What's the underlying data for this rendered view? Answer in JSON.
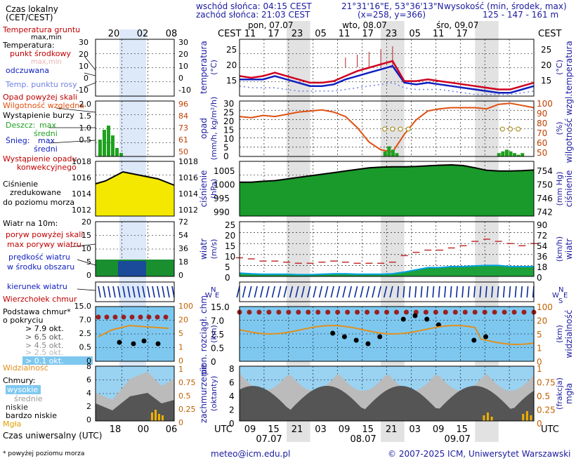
{
  "header": {
    "sunrise": "wschód słońca: 04:15 CEST",
    "sunset": "zachód słońca: 21:03 CEST",
    "coords": "21°31'16\"E, 53°36'13\"N",
    "grid": "(x=258, y=366)",
    "elev_title": "wysokość (min, środek, max)",
    "elev_values": "125 - 147 - 161 m",
    "tz_left": "CEST",
    "tz_right": "CEST",
    "utc_left": "UTC",
    "utc_right": "UTC"
  },
  "days": [
    {
      "label": "pon, 07.07"
    },
    {
      "label": "wto, 08.07"
    },
    {
      "label": "śro, 09.07"
    }
  ],
  "top_hours": [
    "11",
    "17",
    "23",
    "05",
    "11",
    "17",
    "23",
    "05",
    "11",
    "17"
  ],
  "bottom_hours": [
    "09",
    "15",
    "21",
    "03",
    "09",
    "15",
    "21",
    "03",
    "09",
    "15"
  ],
  "bottom_dates": [
    "07.07",
    "08.07",
    "09.07"
  ],
  "legend": {
    "title1": "Czas lokalny",
    "title2": "(CET/CEST)",
    "top_hours": [
      "20",
      "02",
      "08"
    ],
    "bottom_hours": [
      "18",
      "00",
      "06"
    ],
    "utc_label": "Czas uniwersalny (UTC)",
    "footnote": "* powyżej poziomu morza",
    "temp": {
      "ground": "Temperatura gruntu",
      "ground_sub": "max,min",
      "temp_title": "Temperatura:",
      "mid": "punkt środkowy",
      "maxmin": "max,min",
      "cold": "odczuwana",
      "dew": "Temp. punktu rosy",
      "ticks_l": [
        "30",
        "20",
        "10",
        "0",
        "-10"
      ],
      "ticks_r": [
        "30",
        "20",
        "10",
        "0",
        "-10"
      ]
    },
    "precip": {
      "above": "Opad powyżej skali",
      "humidity": "Wilgotność względna",
      "storm": "Wystąpienie burzy",
      "rain": "Deszcz:",
      "rain_max": "max",
      "rain_mid": "średni",
      "snow": "Śnieg:",
      "snow_max": "max",
      "snow_mid": "średni",
      "conv1": "Wystąpienie opadu",
      "conv2": "konwekcyjnego",
      "ticks_l": [
        "2.0",
        "1.5",
        "1.0",
        "0.5"
      ],
      "ticks_r": [
        "96",
        "84",
        "73",
        "61",
        "50"
      ]
    },
    "pressure": {
      "line1": "Ciśnienie",
      "line2": "zredukowane",
      "line3": "do poziomu morza",
      "ticks_l": [
        "1018",
        "1016",
        "1014",
        "1012"
      ],
      "ticks_r": [
        "1018",
        "1016",
        "1014",
        "1012"
      ]
    },
    "wind": {
      "title": "Wiatr na 10m:",
      "gust_above": "poryw powyżej skali",
      "gust_max": "max porywy wiatru",
      "speed1": "prędkość wiatru",
      "speed2": "w środku obszaru",
      "ticks_l": [
        "20",
        "15",
        "10",
        "5",
        "0"
      ],
      "ticks_r": [
        "72",
        "54",
        "36",
        "18",
        "0"
      ]
    },
    "dir": {
      "label": "kierunek wiatru"
    },
    "clouds": {
      "tops": "Wierzchołek chmur",
      "base1": "Podstawa chmur*",
      "base2": "o pokryciu",
      "c79": "> 7.9 okt.",
      "c65": "> 6.5 okt.",
      "c45": "> 4.5 okt.",
      "c25": "> 2.5 okt.",
      "c01": "> 0.1 okt.",
      "vis": "Widzialność",
      "ticks_l": [
        "15.0",
        "7.0",
        "2.5",
        "0.5",
        "0"
      ],
      "ticks_r": [
        "100",
        "20",
        "5",
        "1",
        "0"
      ]
    },
    "cover": {
      "title": "Chmury:",
      "high": "wysokie",
      "mid": "średnie",
      "low": "niskie",
      "vlow": "bardzo niskie",
      "fog": "Mgła",
      "ticks_l": [
        "8",
        "6",
        "4",
        "2",
        "0"
      ],
      "ticks_r": [
        "1",
        "0.75",
        "0.5",
        "0.25",
        "0"
      ]
    }
  },
  "panels": {
    "temp": {
      "ylabel_l": "temperatura",
      "unit_l": "(°C)",
      "ylabel_r": "temperatura",
      "unit_r": "(°C)",
      "ticks": [
        "25",
        "20",
        "15"
      ]
    },
    "precip": {
      "ylabel_l": "opad",
      "unit_l": "(mm/h, kg/m²/h)",
      "ylabel_r": "wilgotność wzgl.",
      "unit_r": "(%)",
      "ticks_l": [
        "30",
        "25",
        "20",
        "15",
        "10",
        "5",
        "0"
      ],
      "ticks_r": [
        "100",
        "90",
        "80",
        "70",
        "60",
        "50"
      ]
    },
    "pressure": {
      "ylabel_l": "ciśnienie",
      "unit_l": "(hPa)",
      "ylabel_r": "ciśnienie",
      "unit_r": "(mm Hg)",
      "ticks_l": [
        "1005",
        "1000",
        "995",
        "990"
      ],
      "ticks_r": [
        "754",
        "750",
        "746",
        "742"
      ]
    },
    "wind": {
      "ylabel_l": "wiatr",
      "unit_l": "(m/s)",
      "ylabel_r": "wiatr",
      "unit_r": "(km/h)",
      "ticks_l": [
        "25",
        "20",
        "15",
        "10",
        "5",
        "0"
      ],
      "ticks_r": [
        "90",
        "72",
        "54",
        "36",
        "18",
        "0"
      ]
    },
    "dir": {
      "rose": "N W E S"
    },
    "cloudbase": {
      "ylabel_l": "pion. rozciągł. chm.",
      "unit_l": "(km)",
      "ylabel_r": "widzialność",
      "unit_r": "(km)",
      "ticks_l": [
        "15.0",
        "7.0",
        "2.5",
        "0.5",
        "0"
      ],
      "ticks_r": [
        "100",
        "20",
        "5",
        "1",
        "0"
      ]
    },
    "cover": {
      "ylabel_l": "zachmurzenie",
      "unit_l": "(oktanty)",
      "ylabel_r": "mgła",
      "unit_r": "(frakcja)",
      "ticks_l": [
        "8",
        "6",
        "4",
        "2",
        "0"
      ],
      "ticks_r": [
        "1",
        "0.75",
        "0.5",
        "0.25",
        "0"
      ]
    }
  },
  "footer": {
    "email": "meteo@icm.edu.pl",
    "copyright": "© 2007-2025 ICM, Uniwersytet Warszawski"
  },
  "colors": {
    "temp_line": "#d00020",
    "apparent": "#1020c0",
    "dew": "#7080e0",
    "humidity": "#e05010",
    "rain": "#20a020",
    "pressure_fill": "#1a9a2a",
    "wind": "#0a2a9a",
    "gust": "#c03030",
    "night_band": "#e2e2e2",
    "cloud_bg": "#7ec8f0"
  },
  "chart_data": [
    {
      "type": "line",
      "title": "temperatura",
      "xlabel": "",
      "ylabel": "(°C)",
      "ylim": [
        12,
        29
      ],
      "x": [
        0,
        3,
        6,
        9,
        12,
        15,
        18,
        21,
        24,
        27,
        30,
        33,
        36,
        39,
        42,
        45,
        48,
        51,
        54,
        57,
        60,
        63,
        66,
        69,
        72,
        75
      ],
      "series": [
        {
          "name": "punkt środkowy",
          "values": [
            18,
            17.5,
            18,
            19,
            18,
            17,
            16,
            16,
            16.5,
            18,
            19.5,
            20.5,
            21.5,
            22.5,
            16.5,
            16.5,
            17,
            16.5,
            16,
            15.5,
            15,
            14.5,
            14,
            14,
            15,
            16
          ]
        },
        {
          "name": "odczuwana",
          "values": [
            17,
            17,
            17,
            18,
            17,
            16,
            15,
            15,
            15.5,
            17,
            18,
            19,
            20,
            21,
            16,
            15.5,
            16,
            15.5,
            15,
            14.5,
            14,
            13.5,
            13,
            13,
            14,
            15
          ]
        },
        {
          "name": "Temp. punktu rosy",
          "values": [
            15,
            14.5,
            14.5,
            14.5,
            14,
            13.5,
            13.5,
            13.5,
            13.5,
            14,
            14.5,
            15,
            15.5,
            16,
            14.5,
            14,
            14,
            14,
            13.5,
            13,
            12.5,
            12.5,
            12.5,
            12.5,
            13,
            13.5
          ]
        }
      ]
    },
    {
      "type": "line",
      "title": "opad / wilgotność wzgl.",
      "xlabel": "",
      "ylabel": "(mm/h)",
      "ylim": [
        0,
        30
      ],
      "x": [
        0,
        3,
        6,
        9,
        12,
        15,
        18,
        21,
        24,
        27,
        30,
        33,
        36,
        39,
        42,
        45,
        48,
        51,
        54,
        57,
        60,
        63,
        66,
        69,
        72,
        75
      ],
      "series": [
        {
          "name": "Wilgotność względna",
          "values": [
            86,
            85,
            87,
            86,
            88,
            90,
            91,
            92,
            90,
            86,
            76,
            63,
            56,
            54,
            70,
            83,
            91,
            93,
            94,
            94,
            94,
            93,
            97,
            98,
            96,
            94
          ]
        }
      ]
    },
    {
      "type": "area",
      "title": "ciśnienie",
      "xlabel": "",
      "ylabel": "(hPa)",
      "ylim": [
        990,
        1007
      ],
      "x": [
        0,
        3,
        6,
        9,
        12,
        15,
        18,
        21,
        24,
        27,
        30,
        33,
        36,
        39,
        42,
        45,
        48,
        51,
        54,
        57,
        60,
        63,
        66,
        69,
        72,
        75
      ],
      "series": [
        {
          "name": "Ciśnienie",
          "values": [
            1000.5,
            1000.5,
            1000.8,
            1001,
            1001.5,
            1002,
            1002.5,
            1003,
            1003.5,
            1004,
            1004.5,
            1005,
            1005.2,
            1005.3,
            1005.3,
            1005.4,
            1005.6,
            1005.8,
            1005.9,
            1005.7,
            1005,
            1004.2,
            1004,
            1004,
            1004.1,
            1004.3
          ]
        }
      ]
    },
    {
      "type": "line",
      "title": "wiatr",
      "xlabel": "",
      "ylabel": "(m/s)",
      "ylim": [
        0,
        25
      ],
      "x": [
        0,
        3,
        6,
        9,
        12,
        15,
        18,
        21,
        24,
        27,
        30,
        33,
        36,
        39,
        42,
        45,
        48,
        51,
        54,
        57,
        60,
        63,
        66,
        69,
        72,
        75
      ],
      "series": [
        {
          "name": "max porywy wiatru",
          "values": [
            8.5,
            8,
            7,
            7,
            6.5,
            6,
            6,
            6.5,
            7,
            6.5,
            6,
            6,
            6,
            6.5,
            9.5,
            11,
            12,
            12,
            13,
            14,
            16,
            17,
            16,
            15,
            14,
            15
          ]
        },
        {
          "name": "prędkość wiatru",
          "values": [
            1.5,
            1.2,
            1,
            1,
            1,
            0.8,
            0.8,
            1,
            1.2,
            1.2,
            1,
            1,
            1,
            1.2,
            2,
            3,
            4,
            4,
            4.5,
            4.5,
            4.8,
            5,
            5,
            4.5,
            4.5,
            4.5
          ]
        }
      ]
    }
  ]
}
